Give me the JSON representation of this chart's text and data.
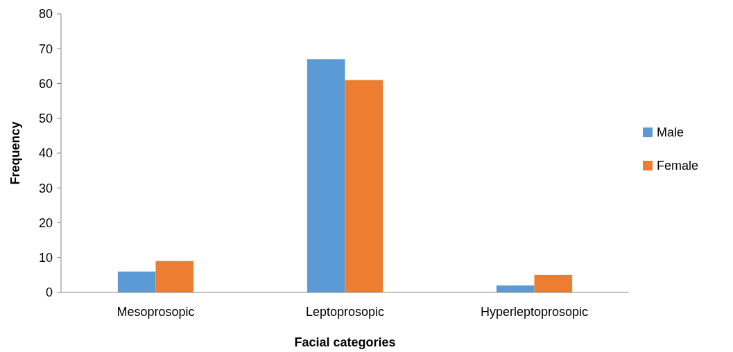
{
  "chart_data": {
    "type": "bar",
    "xlabel": "Facial categories",
    "ylabel": "Frequency",
    "categories": [
      "Mesoprosopic",
      "Leptoprosopic",
      "Hyperleptoprosopic"
    ],
    "series": [
      {
        "name": "Male",
        "color": "#5b9bd5",
        "values": [
          6,
          67,
          2
        ]
      },
      {
        "name": "Female",
        "color": "#ed7d31",
        "values": [
          9,
          61,
          5
        ]
      }
    ],
    "ylim": [
      0,
      80
    ],
    "yticks": [
      0,
      10,
      20,
      30,
      40,
      50,
      60,
      70,
      80
    ],
    "grid": false,
    "legend": "right"
  }
}
